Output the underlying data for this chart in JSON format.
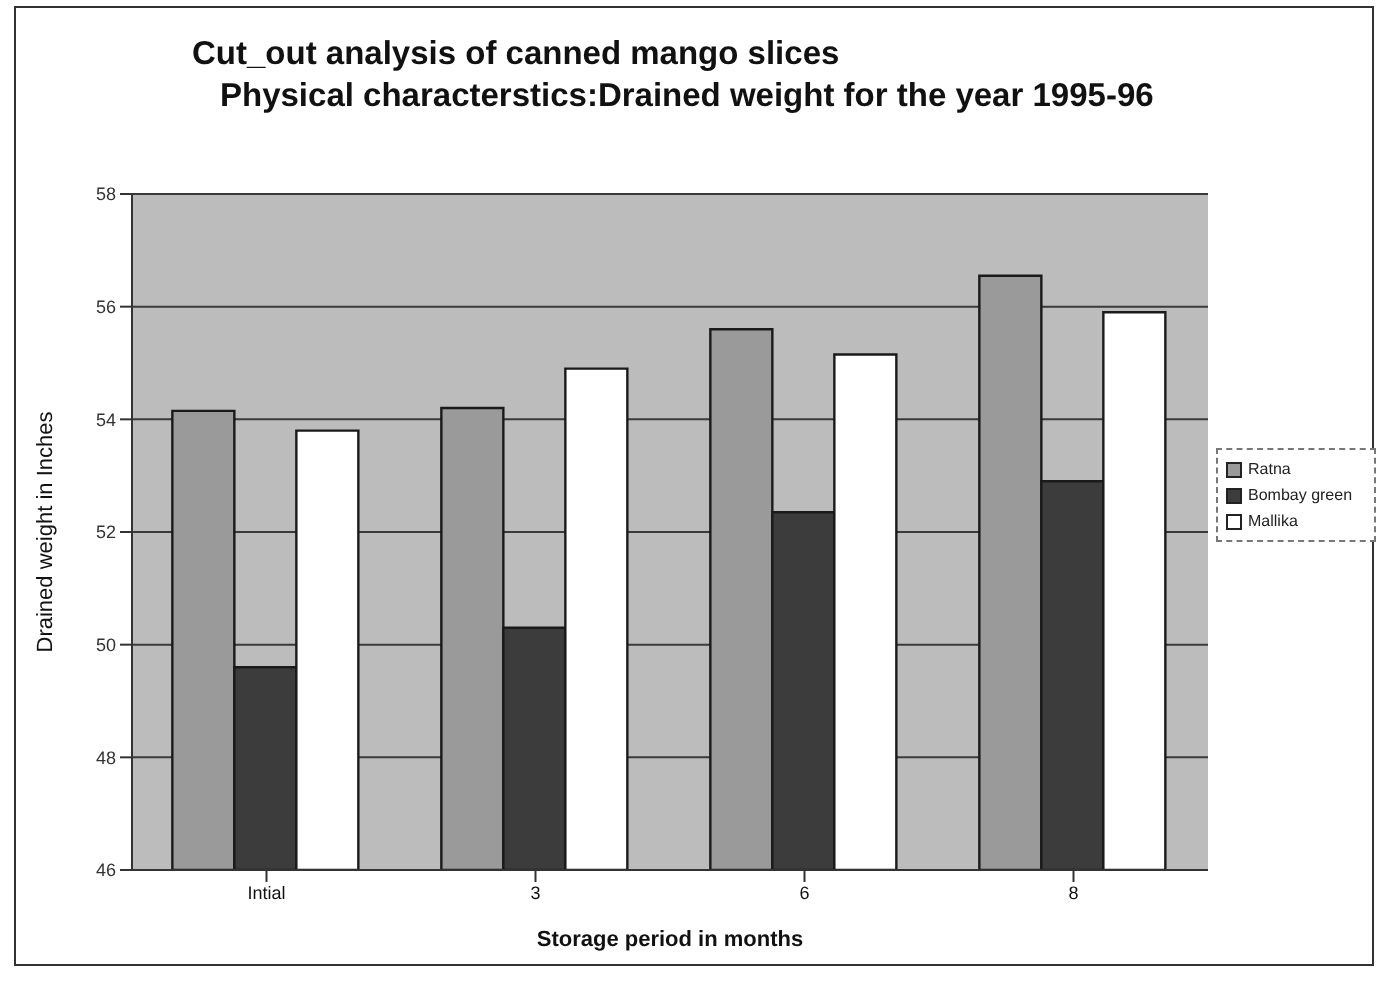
{
  "chart_data": {
    "type": "bar",
    "title": "Cut_out analysis of canned mango slices",
    "subtitle": "Physical characterstics:Drained weight for the year 1995-96",
    "xlabel": "Storage period in months",
    "ylabel": "Drained weight in Inches",
    "categories": [
      "Intial",
      "3",
      "6",
      "8"
    ],
    "series": [
      {
        "name": "Ratna",
        "color": "#9a9a9a",
        "values": [
          54.15,
          54.2,
          55.6,
          56.55
        ]
      },
      {
        "name": "Bombay green",
        "color": "#3c3c3c",
        "values": [
          49.6,
          50.3,
          52.35,
          52.9
        ]
      },
      {
        "name": "Mallika",
        "color": "#ffffff",
        "values": [
          53.8,
          54.9,
          55.15,
          55.9
        ]
      }
    ],
    "ylim": [
      46,
      58
    ],
    "yticks": [
      46,
      48,
      50,
      52,
      54,
      56,
      58
    ],
    "grid": "y",
    "legend": "right"
  }
}
